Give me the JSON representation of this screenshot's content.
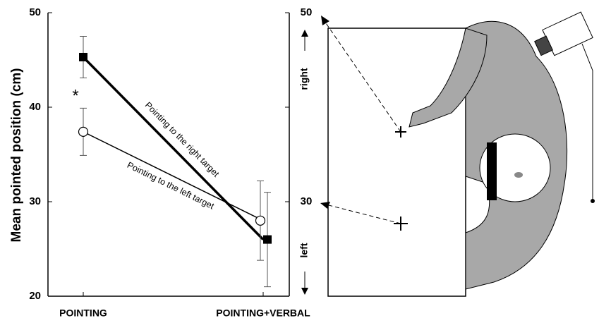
{
  "chart_data": {
    "type": "line",
    "y_label": "Mean pointed position (cm)",
    "categories": [
      "POINTING",
      "POINTING+VERBAL"
    ],
    "series": [
      {
        "name": "Pointing to the right target",
        "color": "#000000",
        "marker": "square",
        "values": [
          45.3,
          26
        ],
        "errors": [
          2.2,
          5
        ]
      },
      {
        "name": "Pointing to the left target",
        "color": "#000000",
        "marker": "circle",
        "values": [
          37.4,
          28
        ],
        "errors": [
          2.5,
          4.2
        ]
      }
    ],
    "annotations": [
      "*"
    ],
    "ylim": [
      20,
      50
    ],
    "yticks": [
      20,
      30,
      40,
      50
    ],
    "y2lim": [
      20,
      50
    ],
    "y2ticks": [
      30,
      50
    ],
    "direction_labels": [
      "right",
      "left"
    ]
  }
}
